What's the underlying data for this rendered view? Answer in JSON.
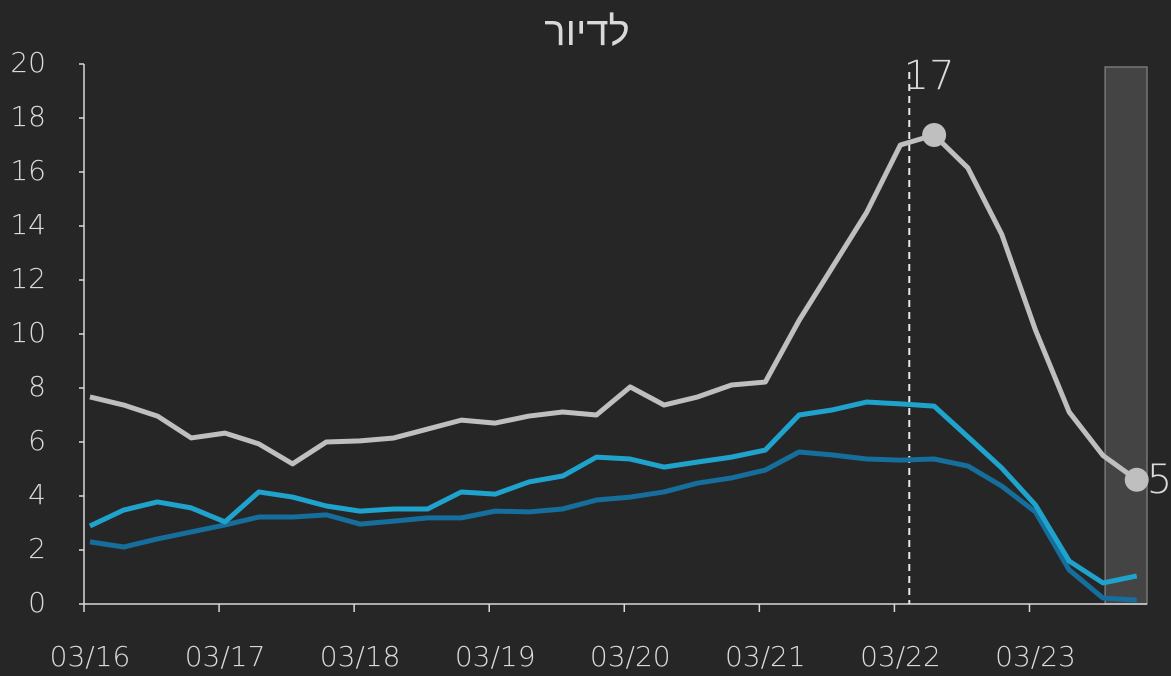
{
  "chart_data": {
    "type": "line",
    "title": "לדיור",
    "x": [
      2016.044,
      2016.294,
      2016.544,
      2016.794,
      2017.044,
      2017.294,
      2017.544,
      2017.794,
      2018.044,
      2018.294,
      2018.544,
      2018.794,
      2019.044,
      2019.294,
      2019.544,
      2019.794,
      2020.044,
      2020.294,
      2020.544,
      2020.794,
      2021.044,
      2021.294,
      2021.544,
      2021.794,
      2022.044,
      2022.294,
      2022.544,
      2022.794,
      2023.044,
      2023.294,
      2023.544,
      2023.794
    ],
    "series": [
      {
        "color": "#bfbfbf",
        "values": [
          7.67,
          7.37,
          6.96,
          6.15,
          6.33,
          5.93,
          5.19,
          6.0,
          6.04,
          6.15,
          6.48,
          6.81,
          6.7,
          6.96,
          7.11,
          7.0,
          8.04,
          7.37,
          7.67,
          8.11,
          8.22,
          10.5,
          12.5,
          14.5,
          17.0,
          17.37,
          16.15,
          13.7,
          10.15,
          7.11,
          5.5,
          4.6
        ],
        "highlights": [
          {
            "index": 25,
            "label": "17"
          },
          {
            "index": 31,
            "label": "5"
          }
        ]
      },
      {
        "color": "#1fa3cc",
        "values": [
          2.89,
          3.48,
          3.78,
          3.56,
          3.04,
          4.15,
          3.96,
          3.63,
          3.44,
          3.52,
          3.52,
          4.15,
          4.07,
          4.52,
          4.74,
          5.44,
          5.37,
          5.07,
          5.26,
          5.44,
          5.7,
          7.0,
          7.19,
          7.48,
          7.41,
          7.33,
          6.19,
          5.04,
          3.67,
          1.59,
          0.78,
          1.04
        ]
      },
      {
        "color": "#156e9b",
        "values": [
          2.3,
          2.11,
          2.41,
          2.67,
          2.93,
          3.22,
          3.22,
          3.3,
          2.96,
          3.07,
          3.19,
          3.19,
          3.44,
          3.41,
          3.52,
          3.85,
          3.96,
          4.15,
          4.48,
          4.67,
          4.96,
          5.63,
          5.52,
          5.37,
          5.33,
          5.37,
          5.11,
          4.37,
          3.41,
          1.26,
          0.22,
          0.15
        ]
      }
    ],
    "vline": 2022.11,
    "shade": [
      2023.56,
      2023.87
    ],
    "xlim": [
      2016,
      2023.87
    ],
    "xticks": [
      {
        "value": 2016,
        "label": "03/16"
      },
      {
        "value": 2017,
        "label": "03/17"
      },
      {
        "value": 2018,
        "label": "03/18"
      },
      {
        "value": 2019,
        "label": "03/19"
      },
      {
        "value": 2020,
        "label": "03/20"
      },
      {
        "value": 2021,
        "label": "03/21"
      },
      {
        "value": 2022,
        "label": "03/22"
      },
      {
        "value": 2023,
        "label": "03/23"
      }
    ],
    "ylim": [
      0,
      20
    ],
    "yticks": [
      0,
      2,
      4,
      6,
      8,
      10,
      12,
      14,
      16,
      18,
      20
    ]
  }
}
